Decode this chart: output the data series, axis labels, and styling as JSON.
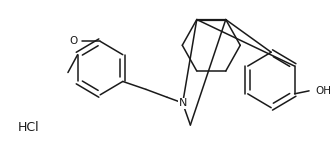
{
  "background_color": "#ffffff",
  "line_color": "#1a1a1a",
  "line_width": 1.1,
  "font_size": 7.5,
  "figsize": [
    3.34,
    1.5
  ],
  "dpi": 100,
  "hcl_text": "HCl",
  "oh_text": "OH",
  "o_text": "O"
}
